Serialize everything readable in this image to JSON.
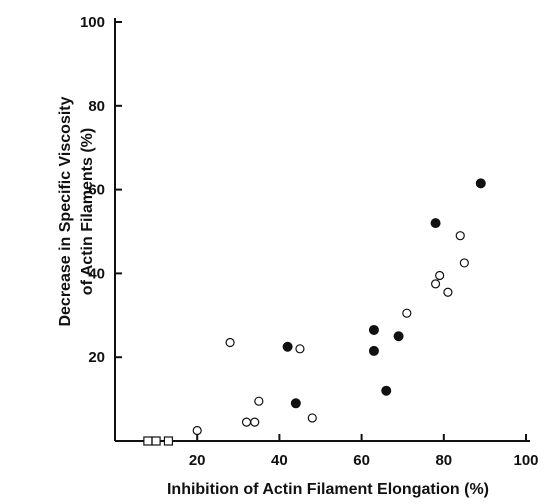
{
  "chart_data": {
    "type": "scatter",
    "xlabel": "Inhibition of Actin Filament Elongation (%)",
    "ylabel_line1": "Decrease in Specific Viscosity",
    "ylabel_line2": "of Actin Filaments (%)",
    "xlim": [
      0,
      100
    ],
    "ylim": [
      0,
      100
    ],
    "x_ticks": [
      20,
      40,
      60,
      80,
      100
    ],
    "y_ticks": [
      20,
      40,
      60,
      80,
      100
    ],
    "grid": false,
    "colors": {
      "ink": "#111111"
    },
    "series": [
      {
        "marker": "filled-circle",
        "points": [
          [
            42,
            22.5
          ],
          [
            44,
            9
          ],
          [
            63,
            26.5
          ],
          [
            63,
            21.5
          ],
          [
            66,
            12
          ],
          [
            69,
            25
          ],
          [
            78,
            52
          ],
          [
            89,
            61.5
          ]
        ]
      },
      {
        "marker": "open-circle",
        "points": [
          [
            20,
            2.5
          ],
          [
            28,
            23.5
          ],
          [
            32,
            4.5
          ],
          [
            34,
            4.5
          ],
          [
            35,
            9.5
          ],
          [
            45,
            22
          ],
          [
            48,
            5.5
          ],
          [
            71,
            30.5
          ],
          [
            78,
            37.5
          ],
          [
            79,
            39.5
          ],
          [
            81,
            35.5
          ],
          [
            84,
            49
          ],
          [
            85,
            42.5
          ]
        ]
      },
      {
        "marker": "open-square",
        "points": [
          [
            8,
            0
          ],
          [
            10,
            0
          ],
          [
            13,
            0
          ]
        ]
      }
    ],
    "line_segments": [
      [
        [
          8,
          0
        ],
        [
          13,
          0
        ]
      ]
    ]
  }
}
